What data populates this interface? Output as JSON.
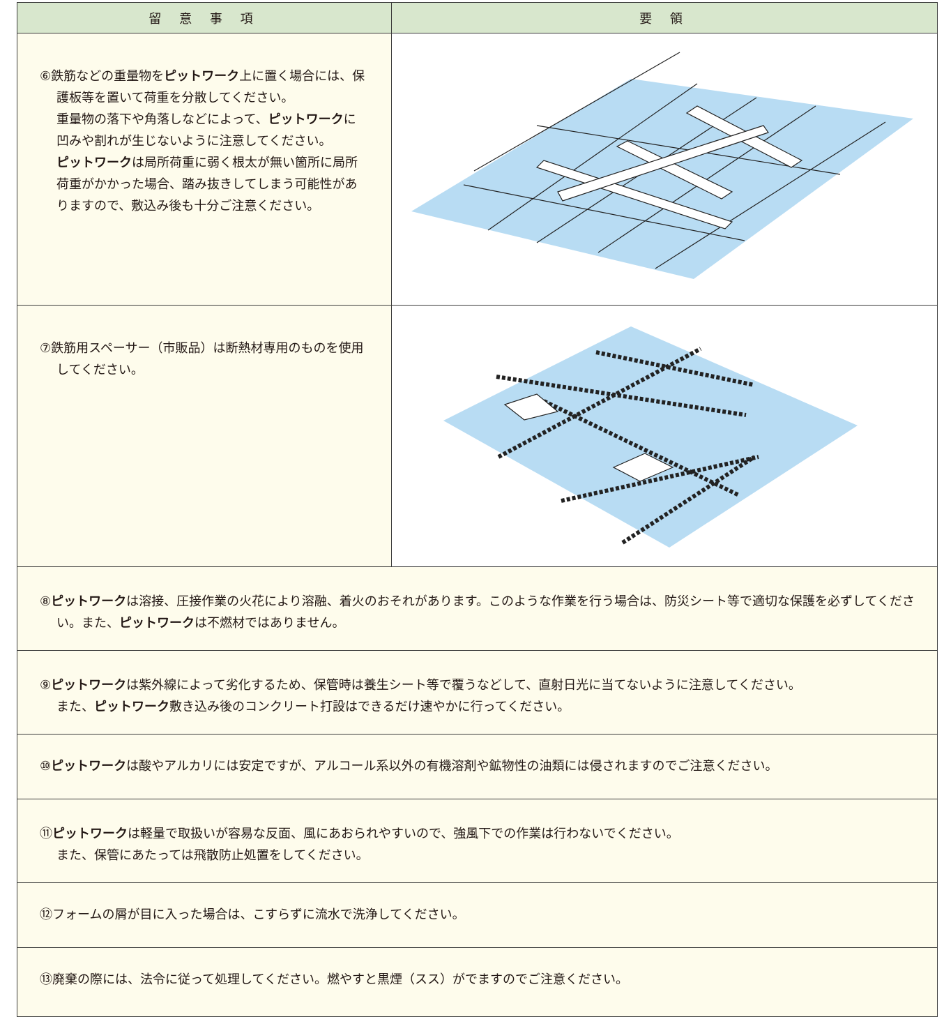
{
  "header": [
    "留 意 事 項",
    "要 領"
  ],
  "rows": [
    {
      "paragraphs": [
        [
          "⑥鉄筋などの重量物を",
          {
            "text": "ピットワーク",
            "bold": true
          },
          "上に置く場合には、保護板等を置いて荷重を分散してください。"
        ],
        [
          "重量物の落下や角落しなどによって、",
          {
            "text": "ピットワーク",
            "bold": true
          },
          "に凹みや割れが生じないように注意してください。"
        ],
        [
          {
            "text": "ピットワーク",
            "bold": true
          },
          "は局所荷重に弱く根太が無い箇所に局所荷重がかかった場合、踏み抜きしてしまう可能性がありますので、敷込み後も十分ご注意ください。"
        ]
      ]
    },
    {
      "paragraphs": [
        [
          "⑦鉄筋用スペーサー（市販品）は断熱材専用のものを使用してください。"
        ]
      ]
    },
    {
      "paragraphs": [
        [
          "⑧",
          {
            "text": "ピットワーク",
            "bold": true
          },
          "は溶接、圧接作業の火花により溶融、着火のおそれがあります。このような作業を行う場合は、防災シート等で適切な保護を必ずしてください。また、",
          {
            "text": "ピットワーク",
            "bold": true
          },
          "は不燃材ではありません。"
        ]
      ]
    },
    {
      "paragraphs": [
        [
          "⑨",
          {
            "text": "ピットワーク",
            "bold": true
          },
          "は紫外線によって劣化するため、保管時は養生シート等で覆うなどして、直射日光に当てないように注意してください。"
        ],
        [
          "また、",
          {
            "text": "ピットワーク",
            "bold": true
          },
          "敷き込み後のコンクリート打設はできるだけ速やかに行ってください。"
        ]
      ]
    },
    {
      "paragraphs": [
        [
          "⑩",
          {
            "text": "ピットワーク",
            "bold": true
          },
          "は酸やアルカリには安定ですが、アルコール系以外の有機溶剤や鉱物性の油類には侵されますのでご注意ください。"
        ]
      ]
    },
    {
      "paragraphs": [
        [
          "⑪",
          {
            "text": "ピットワーク",
            "bold": true
          },
          "は軽量で取扱いが容易な反面、風にあおられやすいので、強風下での作業は行わないでください。"
        ],
        [
          "また、保管にあたっては飛散防止処置をしてください。"
        ]
      ]
    },
    {
      "paragraphs": [
        [
          "⑫フォームの屑が目に入った場合は、こすらずに流水で洗浄してください。"
        ]
      ]
    },
    {
      "paragraphs": [
        [
          "⑬廃棄の際には、法令に従って処理してください。燃やすと黒煙（スス）がでますのでご注意ください。"
        ]
      ]
    }
  ]
}
